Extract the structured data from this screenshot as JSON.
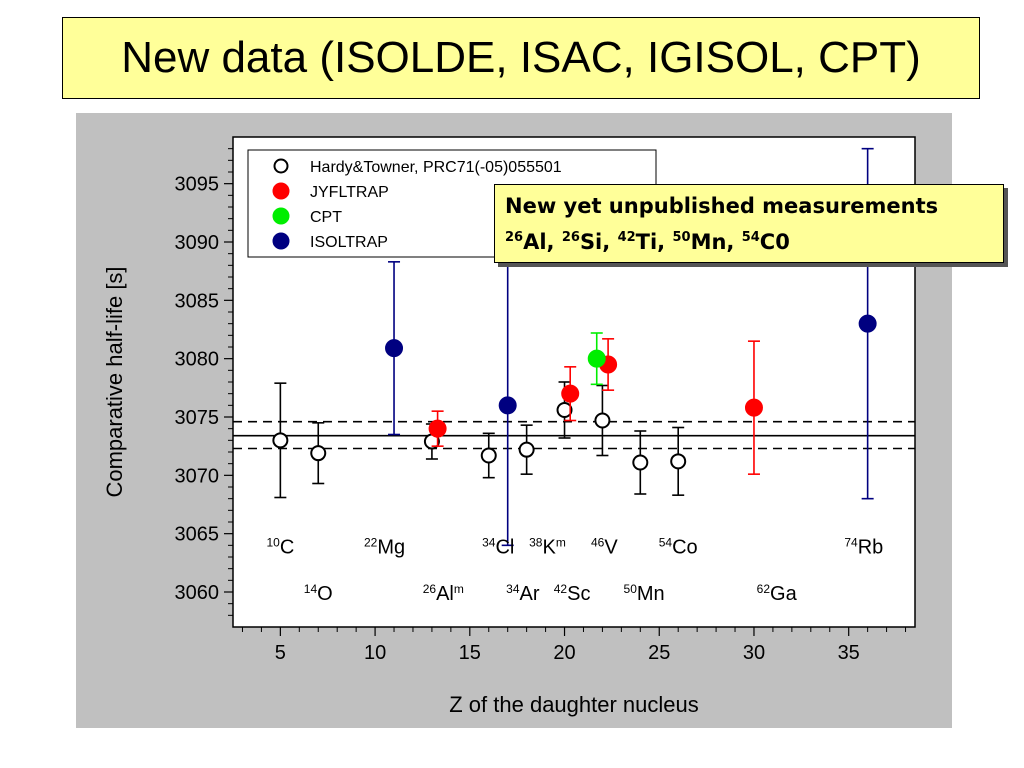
{
  "title": "New data (ISOLDE, ISAC, IGISOL, CPT)",
  "callout": {
    "line1": "New yet unpublished measurements",
    "line2": [
      {
        "sup": "26",
        "text": "Al, "
      },
      {
        "sup": "26",
        "text": "Si, "
      },
      {
        "sup": "42",
        "text": "Ti, "
      },
      {
        "sup": "50",
        "text": "Mn, "
      },
      {
        "sup": "54",
        "text": "C0"
      }
    ]
  },
  "chart_data": {
    "type": "scatter",
    "xlabel": "Z of the daughter nucleus",
    "ylabel": "Comparative half-life [s]",
    "xlim": [
      2.5,
      38.5
    ],
    "ylim": [
      3057,
      3099
    ],
    "xticks": [
      5,
      10,
      15,
      20,
      25,
      30,
      35
    ],
    "yticks": [
      3060,
      3065,
      3070,
      3075,
      3080,
      3085,
      3090,
      3095
    ],
    "mean_line": 3073.4,
    "band_lines": [
      3072.3,
      3074.6
    ],
    "series": [
      {
        "name": "Hardy&Towner, PRC71(-05)055501",
        "color": "#ffffff",
        "err_color": "#000000",
        "points": [
          {
            "x": 5,
            "y": 3073.0,
            "lo": 3068.1,
            "hi": 3077.9
          },
          {
            "x": 7,
            "y": 3071.9,
            "lo": 3069.3,
            "hi": 3074.5
          },
          {
            "x": 13,
            "y": 3072.9,
            "lo": 3071.4,
            "hi": 3074.4
          },
          {
            "x": 16,
            "y": 3071.7,
            "lo": 3069.8,
            "hi": 3073.6
          },
          {
            "x": 18,
            "y": 3072.2,
            "lo": 3070.1,
            "hi": 3074.3
          },
          {
            "x": 20,
            "y": 3075.6,
            "lo": 3073.2,
            "hi": 3078.0
          },
          {
            "x": 22,
            "y": 3074.7,
            "lo": 3071.7,
            "hi": 3077.7
          },
          {
            "x": 24,
            "y": 3071.1,
            "lo": 3068.4,
            "hi": 3073.8
          },
          {
            "x": 26,
            "y": 3071.2,
            "lo": 3068.3,
            "hi": 3074.1
          }
        ]
      },
      {
        "name": "JYFLTRAP",
        "color": "#ff0000",
        "err_color": "#ff0000",
        "points": [
          {
            "x": 13.3,
            "y": 3074.0,
            "lo": 3072.5,
            "hi": 3075.5
          },
          {
            "x": 20.3,
            "y": 3077.0,
            "lo": 3074.7,
            "hi": 3079.3
          },
          {
            "x": 22.3,
            "y": 3079.5,
            "lo": 3077.3,
            "hi": 3081.7
          },
          {
            "x": 30,
            "y": 3075.8,
            "lo": 3070.1,
            "hi": 3081.5
          }
        ]
      },
      {
        "name": "CPT",
        "color": "#00ee00",
        "err_color": "#00ee00",
        "points": [
          {
            "x": 21.7,
            "y": 3080.0,
            "lo": 3077.8,
            "hi": 3082.2
          }
        ]
      },
      {
        "name": "ISOLTRAP",
        "color": "#000080",
        "err_color": "#000080",
        "points": [
          {
            "x": 11,
            "y": 3080.9,
            "lo": 3073.5,
            "hi": 3088.3
          },
          {
            "x": 17,
            "y": 3076.0,
            "lo": 3064.0,
            "hi": 3088.0
          },
          {
            "x": 36,
            "y": 3083.0,
            "lo": 3068.0,
            "hi": 3098.0
          }
        ]
      }
    ],
    "annotations": [
      {
        "sup": "10",
        "text": "C",
        "x": 5,
        "y": 3063.3
      },
      {
        "sup": "22",
        "text": "Mg",
        "x": 10.5,
        "y": 3063.3
      },
      {
        "sup": "34",
        "text": "Cl",
        "x": 16.5,
        "y": 3063.3
      },
      {
        "sup": "38",
        "text": "K",
        "sup2": "m",
        "x": 19.1,
        "y": 3063.3
      },
      {
        "sup": "46",
        "text": "V",
        "x": 22.1,
        "y": 3063.3
      },
      {
        "sup": "54",
        "text": "Co",
        "x": 26.0,
        "y": 3063.3
      },
      {
        "sup": "74",
        "text": "Rb",
        "x": 35.8,
        "y": 3063.3
      },
      {
        "sup": "14",
        "text": "O",
        "x": 7.0,
        "y": 3059.3
      },
      {
        "sup": "26",
        "text": "Al",
        "sup2": "m",
        "x": 13.6,
        "y": 3059.3
      },
      {
        "sup": "34",
        "text": "Ar",
        "x": 17.8,
        "y": 3059.3
      },
      {
        "sup": "42",
        "text": "Sc",
        "x": 20.4,
        "y": 3059.3
      },
      {
        "sup": "50",
        "text": "Mn",
        "x": 24.2,
        "y": 3059.3
      },
      {
        "sup": "62",
        "text": "Ga",
        "x": 31.2,
        "y": 3059.3
      }
    ],
    "legend_position": "top-left"
  }
}
